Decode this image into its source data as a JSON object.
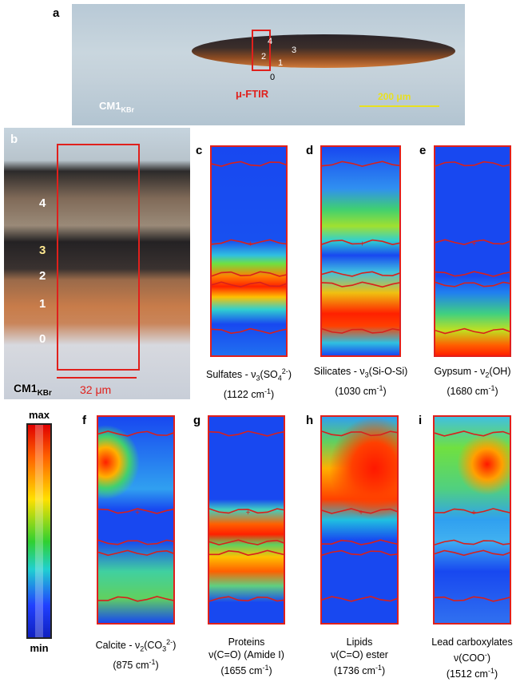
{
  "panel_a": {
    "letter": "a",
    "layers": [
      "4",
      "3",
      "2",
      "1",
      "0"
    ],
    "probe": "μ-FTIR",
    "sample": "CM1",
    "sample_sub": "KBr",
    "scale": "200 μm"
  },
  "panel_b": {
    "letter": "b",
    "layers": [
      "4",
      "3",
      "2",
      "1",
      "0"
    ],
    "sample": "CM1",
    "sample_sub": "KBr",
    "scale": "32 μm"
  },
  "colorbar": {
    "max": "max",
    "min": "min"
  },
  "maps": [
    {
      "letter": "c",
      "lines": [
        [
          "Sulfates - ν",
          "3",
          "(SO",
          "4",
          "2-",
          ")"
        ],
        [
          "(1122 cm",
          "-1",
          ")"
        ]
      ]
    },
    {
      "letter": "d",
      "lines": [
        [
          "Silicates - ν",
          "3",
          "(Si-O-Si)"
        ],
        [
          "(1030 cm",
          "-1",
          ")"
        ]
      ]
    },
    {
      "letter": "e",
      "lines": [
        [
          "Gypsum - ν",
          "2",
          "(OH)"
        ],
        [
          "(1680 cm",
          "-1",
          ")"
        ]
      ]
    },
    {
      "letter": "f",
      "lines": [
        [
          "Calcite - ν",
          "2",
          "(CO",
          "3",
          "2-",
          ")"
        ],
        [
          "(875 cm",
          "-1",
          ")"
        ]
      ]
    },
    {
      "letter": "g",
      "lines": [
        [
          "Proteins"
        ],
        [
          "ν(C=O) (Amide I)"
        ],
        [
          "(1655 cm",
          "-1",
          ")"
        ]
      ]
    },
    {
      "letter": "h",
      "lines": [
        [
          "Lipids"
        ],
        [
          "ν(C=O) ester"
        ],
        [
          "(1736 cm",
          "-1",
          ")"
        ]
      ]
    },
    {
      "letter": "i",
      "lines": [
        [
          "Lead carboxylates"
        ],
        [
          "ν(COO",
          "-",
          ")"
        ],
        [
          "(1512 cm",
          "-1",
          ")"
        ]
      ]
    }
  ]
}
